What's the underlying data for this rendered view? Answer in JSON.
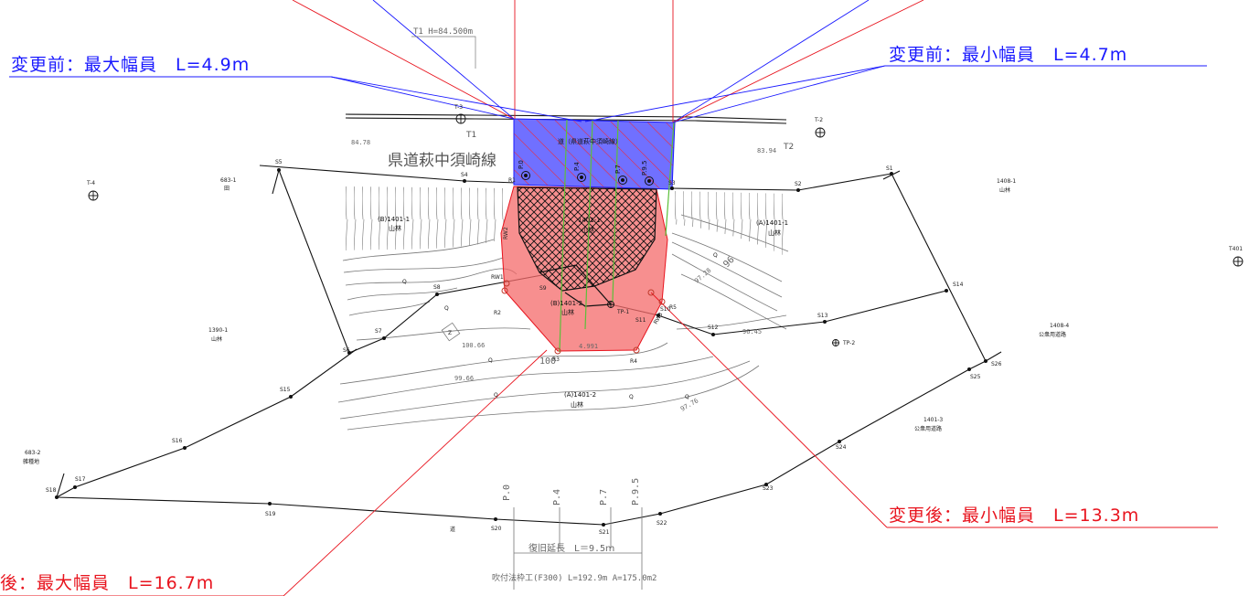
{
  "road_name": "県道萩中須崎線",
  "road_label": "道（県道萩中須崎線）",
  "annotations": {
    "before_max": "変更前：最大幅員　L=4.9m",
    "before_min": "変更前：最小幅員　L=4.7m",
    "after_min": "変更後：最小幅員　L=13.3m",
    "after_max": "後：最大幅員　L=16.7m"
  },
  "colors": {
    "before_area": "#7070ff",
    "after_area": "#f46a6a",
    "blue_line": "#1a1aff",
    "red_line": "#e8141e",
    "green_line": "#5cbf3a"
  },
  "top_note": "T1 H=84.500m",
  "benchmarks": {
    "t3": "T-3",
    "t1": "T1",
    "t2_label": "T-2",
    "t2": "T2",
    "t4": "T-4",
    "t401": "T401",
    "tp1": "TP-1",
    "tp2": "TP-2"
  },
  "elevations": {
    "e1": "84.78",
    "e2": "83.94",
    "e3": "100.66",
    "e4": "99.66",
    "e5": "97.76",
    "e6": "97.28",
    "e7": "96.45",
    "e8": "4.991",
    "e9": "100",
    "e10": "96"
  },
  "parcels": {
    "p683_1": "683-1",
    "p683_1_use": "田",
    "b1401_1": "(B)1401-1",
    "b1401_1_use": "山林",
    "a1401_1": "(A)1401-1",
    "a1401_1_use": "山林",
    "p1408_1": "1408-1",
    "p1408_1_use": "山林",
    "p1390_1": "1390-1",
    "p1390_1_use": "山林",
    "b1401_2": "(B)1401-2",
    "b1401_2_use": "山林",
    "c1401": "1401-1",
    "c1401_use": "山林",
    "a1401_2": "(A)1401-2",
    "a1401_2_use": "山林",
    "p1408_4": "1408-4",
    "p1408_4_use": "公衆用道路",
    "p1401_3": "1401-3",
    "p1401_3_use": "公衆用道路",
    "p683_2": "683-2",
    "p683_2_use": "雑種地",
    "road_bottom": "道"
  },
  "points": {
    "s1": "S1",
    "s2": "S2",
    "s3": "S3",
    "s4": "S4",
    "s5": "S5",
    "s6": "S6",
    "s7": "S7",
    "s8": "S8",
    "s9": "S9",
    "s10": "S10",
    "s11": "S11",
    "s12": "S12",
    "s13": "S13",
    "s14": "S14",
    "s15": "S15",
    "s16": "S16",
    "s17": "S17",
    "s18": "S18",
    "s19": "S19",
    "s20": "S20",
    "s21": "S21",
    "s22": "S22",
    "s23": "S23",
    "s24": "S24",
    "s25": "S25",
    "s26": "S26",
    "r1": "R1",
    "r2": "R2",
    "r3": "R3",
    "r4": "R4",
    "r5": "R5",
    "rw1": "RW1",
    "rw2": "RW2",
    "rw3": "RW3"
  },
  "stations": {
    "p0": "P.0",
    "p4": "P.4",
    "p7": "P.7",
    "p95": "P.9.5"
  },
  "recovery_length": "復旧延長　L＝9.5ｍ",
  "spray_frame": "吹付法枠工(F300) L=192.9m A=175.0m2",
  "symbols": {
    "q": "Q",
    "z": "Z"
  }
}
